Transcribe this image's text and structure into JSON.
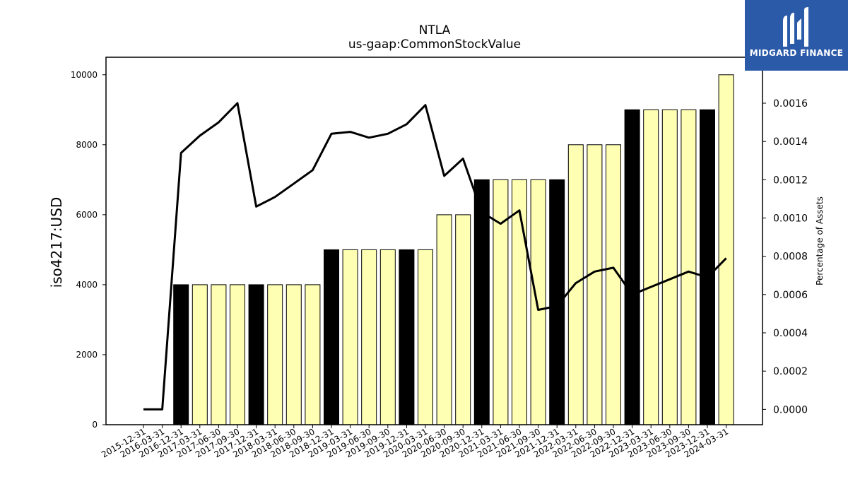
{
  "chart_data": {
    "type": "bar",
    "title": "NTLA",
    "subtitle": "us-gaap:CommonStockValue",
    "ylabel": "iso4217:USD",
    "ylabel_right": "Percentage of Assets",
    "ylim": [
      0,
      10500
    ],
    "ylim_right": [
      -8e-05,
      0.00184
    ],
    "y_ticks": [
      "0",
      "2000",
      "4000",
      "6000",
      "8000",
      "10000"
    ],
    "y_ticks_right": [
      "0.0000",
      "0.0002",
      "0.0004",
      "0.0006",
      "0.0008",
      "0.0010",
      "0.0012",
      "0.0014",
      "0.0016"
    ],
    "categories": [
      "2015-12-31",
      "2016-03-31",
      "2016-12-31",
      "2017-03-31",
      "2017-06-30",
      "2017-09-30",
      "2017-12-31",
      "2018-03-31",
      "2018-06-30",
      "2018-09-30",
      "2018-12-31",
      "2019-03-31",
      "2019-06-30",
      "2019-09-30",
      "2019-12-31",
      "2020-03-31",
      "2020-06-30",
      "2020-09-30",
      "2020-12-31",
      "2021-03-31",
      "2021-06-30",
      "2021-09-30",
      "2021-12-31",
      "2022-03-31",
      "2022-06-30",
      "2022-09-30",
      "2022-12-31",
      "2023-03-31",
      "2023-06-30",
      "2023-09-30",
      "2023-12-31",
      "2024-03-31"
    ],
    "series": [
      {
        "values": [
          0,
          0,
          4000,
          4000,
          4000,
          4000,
          4000,
          4000,
          4000,
          4000,
          5000,
          5000,
          5000,
          5000,
          5000,
          5000,
          6000,
          6000,
          7000,
          7000,
          7000,
          7000,
          7000,
          8000,
          8000,
          8000,
          9000,
          9000,
          9000,
          9000,
          9000,
          10000
        ],
        "highlight": [
          false,
          false,
          true,
          false,
          false,
          false,
          true,
          false,
          false,
          false,
          true,
          false,
          false,
          false,
          true,
          false,
          false,
          false,
          true,
          false,
          false,
          false,
          true,
          false,
          false,
          false,
          true,
          false,
          false,
          false,
          true,
          false
        ]
      },
      {
        "axis": "right",
        "values": [
          0,
          0,
          0.00134,
          0.00143,
          0.0015,
          0.0016,
          0.00106,
          0.00111,
          0.00118,
          0.00125,
          0.00144,
          0.00145,
          0.00142,
          0.00144,
          0.00149,
          0.00159,
          0.00122,
          0.00131,
          0.00103,
          0.00097,
          0.00104,
          0.00052,
          0.00054,
          0.00066,
          0.00072,
          0.00074,
          0.0006,
          0.00064,
          0.00068,
          0.00072,
          0.00069,
          0.00079
        ]
      }
    ],
    "colors": {
      "highlight_bar": "#000000",
      "normal_bar": "#ffffb3",
      "line": "#000000"
    },
    "grid": false
  },
  "logo": {
    "text": "MIDGARD FINANCE",
    "bg_color": "#2b5aa8"
  }
}
